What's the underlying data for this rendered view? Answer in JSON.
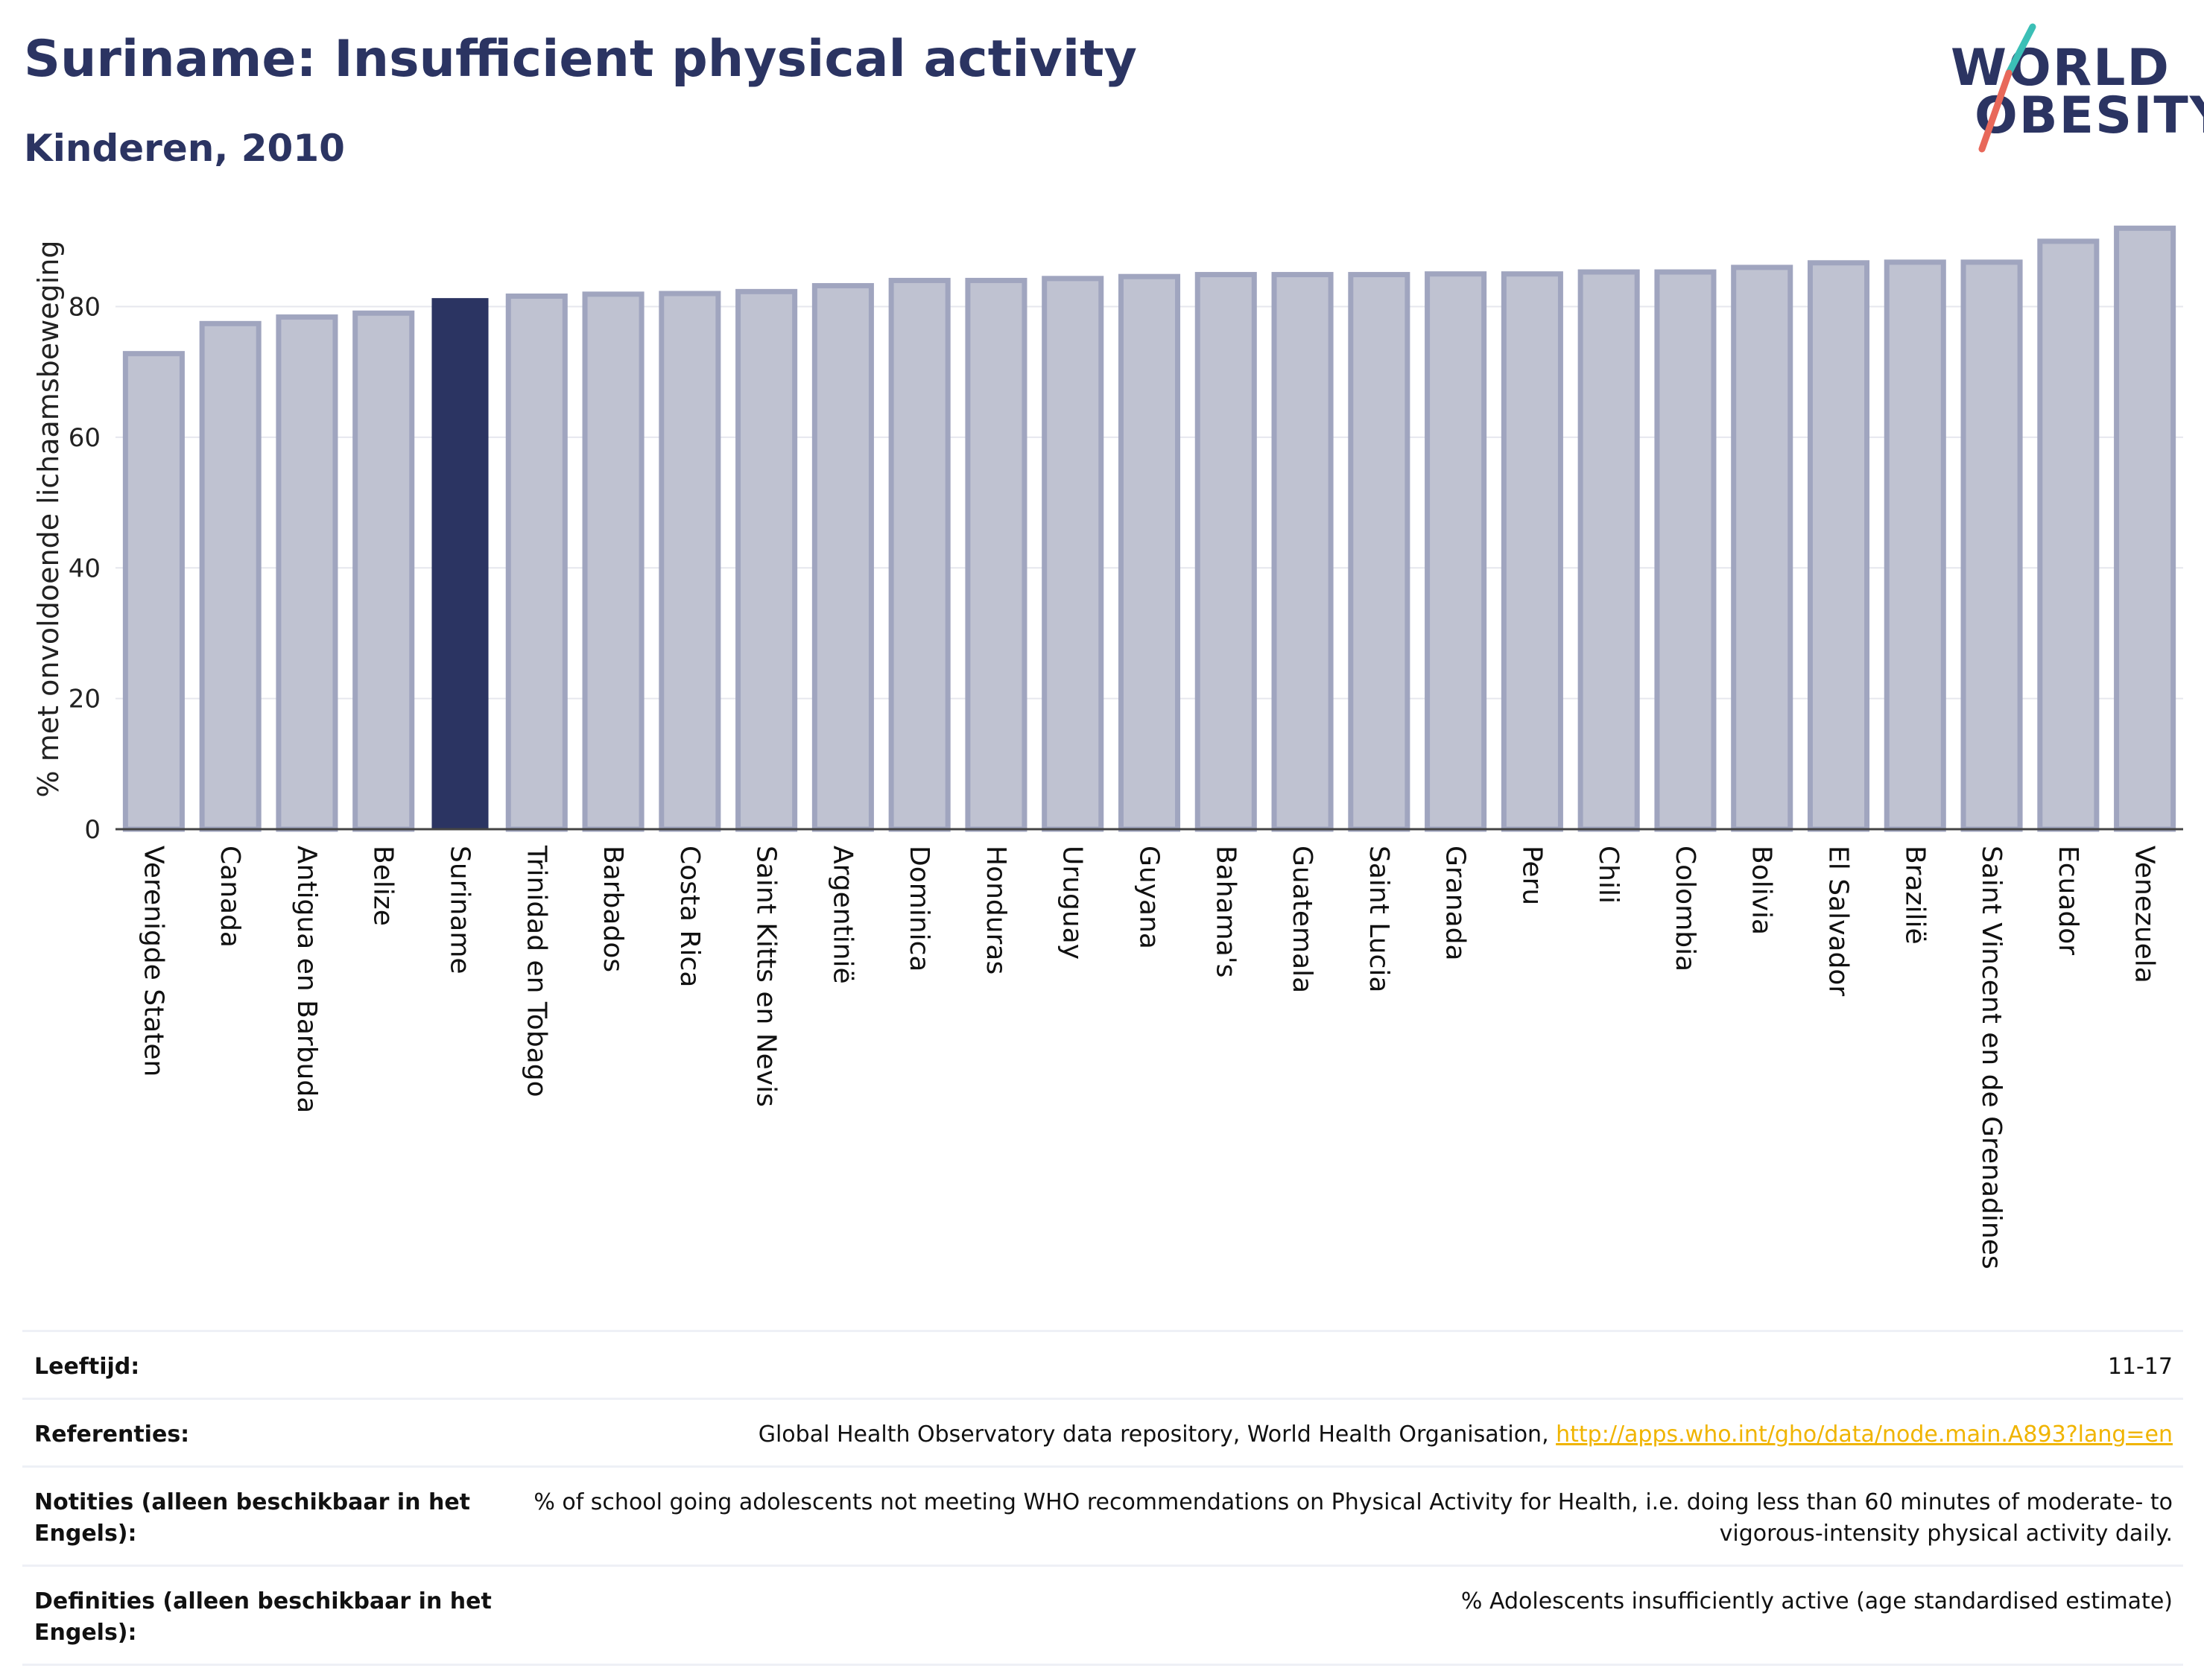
{
  "header": {
    "title": "Suriname: Insufficient physical activity",
    "subtitle": "Kinderen, 2010"
  },
  "logo": {
    "line1": "WORLD",
    "line2": "OBESITY",
    "colors": {
      "text": "#2b3462",
      "slash_teal": "#3bbfb6",
      "slash_red": "#e8685a"
    }
  },
  "colors": {
    "bar": "#bfc2d1",
    "bar_stroke": "#a0a5bf",
    "highlight": "#2b3462",
    "grid": "#e6e7ee",
    "axis": "#444444"
  },
  "chart_data": {
    "type": "bar",
    "title": "",
    "xlabel": "",
    "ylabel": "% met onvoldoende lichaamsbeweging",
    "ylim": [
      0,
      95
    ],
    "yticks": [
      0,
      20,
      40,
      60,
      80
    ],
    "grid": true,
    "highlight": "Suriname",
    "categories": [
      "Verenigde Staten",
      "Canada",
      "Antigua en Barbuda",
      "Belize",
      "Suriname",
      "Trinidad en Tobago",
      "Barbados",
      "Costa Rica",
      "Saint Kitts en Nevis",
      "Argentinië",
      "Dominica",
      "Honduras",
      "Uruguay",
      "Guyana",
      "Bahama's",
      "Guatemala",
      "Saint Lucia",
      "Granada",
      "Peru",
      "Chili",
      "Colombia",
      "Bolivia",
      "El Salvador",
      "Brazilië",
      "Saint Vincent en de Grenadines",
      "Ecuador",
      "Venezuela"
    ],
    "values": [
      72.8,
      77.4,
      78.4,
      79.0,
      81.3,
      81.6,
      81.9,
      82.0,
      82.3,
      83.2,
      84.0,
      84.0,
      84.3,
      84.6,
      84.9,
      84.9,
      84.9,
      85.0,
      85.0,
      85.3,
      85.3,
      86.0,
      86.7,
      86.8,
      86.8,
      90.0,
      92.0
    ]
  },
  "meta": [
    {
      "label": "Leeftijd:",
      "value": "11-17"
    },
    {
      "label": "Referenties:",
      "value": "Global Health Observatory data repository, World Health Organisation, ",
      "link": "http://apps.who.int/gho/data/node.main.A893?lang=en"
    },
    {
      "label": "Notities (alleen beschikbaar in het Engels):",
      "value": "% of school going adolescents not meeting WHO recommendations on Physical Activity for Health, i.e. doing less than 60 minutes of moderate- to vigorous-intensity physical activity daily."
    },
    {
      "label": "Definities (alleen beschikbaar in het Engels):",
      "value": "% Adolescents insufficiently active (age standardised estimate)"
    }
  ]
}
